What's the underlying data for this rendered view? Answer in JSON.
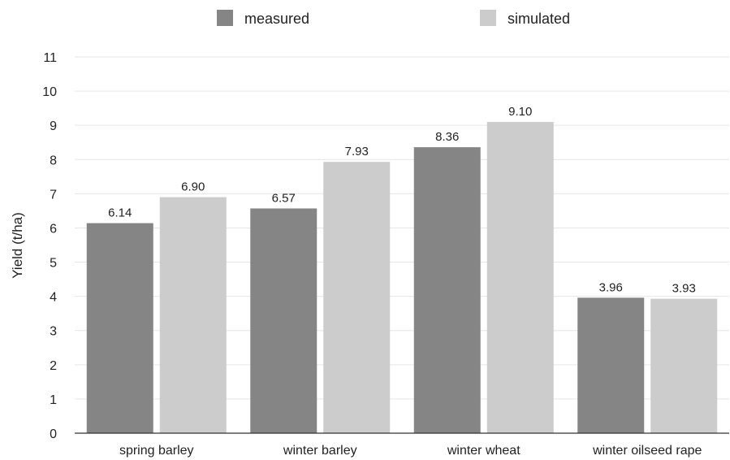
{
  "chart_data": {
    "type": "bar",
    "title": "",
    "xlabel": "",
    "ylabel": "Yield (t/ha)",
    "categories": [
      "spring barley",
      "winter barley",
      "winter wheat",
      "winter oilseed rape"
    ],
    "series": [
      {
        "name": "measured",
        "values": [
          6.14,
          6.57,
          8.36,
          3.96
        ],
        "labels": [
          "6.14",
          "6.57",
          "8.36",
          "3.96"
        ],
        "color": "#858585"
      },
      {
        "name": "simulated",
        "values": [
          6.9,
          7.93,
          9.1,
          3.93
        ],
        "labels": [
          "6.90",
          "7.93",
          "9.10",
          "3.93"
        ],
        "color": "#cccccc"
      }
    ],
    "ylim": [
      0,
      11
    ],
    "yticks": [
      "0",
      "1",
      "2",
      "3",
      "4",
      "5",
      "6",
      "7",
      "8",
      "9",
      "10",
      "11"
    ],
    "grid": true,
    "legend_position": "top-center"
  }
}
